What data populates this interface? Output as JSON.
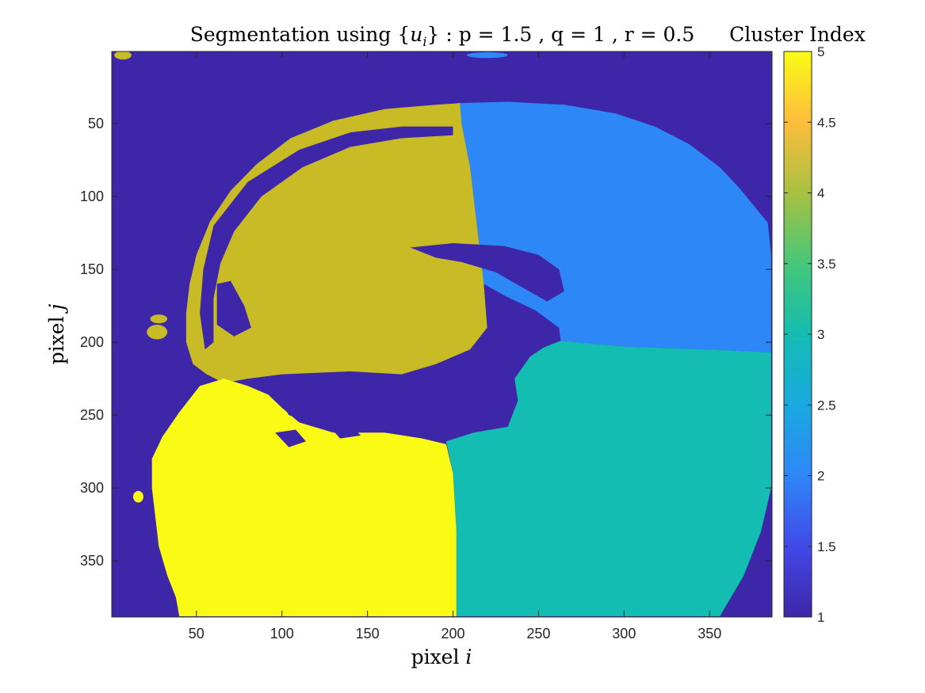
{
  "chart_data": {
    "type": "heatmap",
    "title_prefix": "Segmentation using {",
    "title_var": "u",
    "title_sub": "i",
    "title_suffix": "} : p = 1.5 , q = 1 , r = 0.5",
    "xlabel_text": "pixel ",
    "xlabel_var": "i",
    "ylabel_text": "pixel ",
    "ylabel_var": "j",
    "xlim": [
      0.5,
      386.5
    ],
    "ylim": [
      0.5,
      388.5
    ],
    "y_reversed": true,
    "xticks": [
      "50",
      "100",
      "150",
      "200",
      "250",
      "300",
      "350"
    ],
    "xtick_values": [
      50,
      100,
      150,
      200,
      250,
      300,
      350
    ],
    "yticks": [
      "50",
      "100",
      "150",
      "200",
      "250",
      "300",
      "350"
    ],
    "ytick_values": [
      50,
      100,
      150,
      200,
      250,
      300,
      350
    ],
    "colorbar": {
      "title": "Cluster Index",
      "range": [
        1,
        5
      ],
      "ticks": [
        "1",
        "1.5",
        "2",
        "2.5",
        "3",
        "3.5",
        "4",
        "4.5",
        "5"
      ],
      "tick_values": [
        1,
        1.5,
        2,
        2.5,
        3,
        3.5,
        4,
        4.5,
        5
      ]
    },
    "clusters": [
      {
        "index": 1,
        "color": "#3e26a8",
        "region": "background and dark structures"
      },
      {
        "index": 2,
        "color": "#2e87f7",
        "region": "upper right"
      },
      {
        "index": 3,
        "color": "#13bdb1",
        "region": "lower right"
      },
      {
        "index": 4,
        "color": "#c9bb26",
        "region": "upper left"
      },
      {
        "index": 5,
        "color": "#f9fb15",
        "region": "lower left"
      }
    ],
    "regions": [
      {
        "cluster": 2,
        "polygon": [
          [
            202,
            36
          ],
          [
            232,
            35
          ],
          [
            265,
            37
          ],
          [
            295,
            43
          ],
          [
            318,
            52
          ],
          [
            338,
            64
          ],
          [
            356,
            80
          ],
          [
            368,
            95
          ],
          [
            377,
            108
          ],
          [
            384,
            118
          ],
          [
            386,
            140
          ],
          [
            386,
            207
          ],
          [
            350,
            205
          ],
          [
            300,
            203
          ],
          [
            263,
            199
          ],
          [
            236,
            198
          ],
          [
            228,
            196
          ],
          [
            220,
            190
          ],
          [
            218,
            160
          ],
          [
            214,
            120
          ],
          [
            210,
            80
          ],
          [
            205,
            50
          ]
        ]
      },
      {
        "cluster": 3,
        "polygon": [
          [
            263,
            199
          ],
          [
            300,
            203
          ],
          [
            350,
            205
          ],
          [
            386,
            207
          ],
          [
            386,
            300
          ],
          [
            380,
            330
          ],
          [
            370,
            360
          ],
          [
            356,
            388
          ],
          [
            202,
            388
          ],
          [
            202,
            330
          ],
          [
            200,
            290
          ],
          [
            196,
            268
          ],
          [
            212,
            262
          ],
          [
            232,
            258
          ],
          [
            238,
            240
          ],
          [
            236,
            225
          ],
          [
            245,
            210
          ],
          [
            255,
            202
          ]
        ]
      },
      {
        "cluster": 4,
        "polygon": [
          [
            204,
            36
          ],
          [
            190,
            37
          ],
          [
            160,
            40
          ],
          [
            130,
            48
          ],
          [
            105,
            60
          ],
          [
            85,
            78
          ],
          [
            70,
            96
          ],
          [
            58,
            117
          ],
          [
            50,
            140
          ],
          [
            46,
            160
          ],
          [
            44,
            180
          ],
          [
            44,
            200
          ],
          [
            48,
            215
          ],
          [
            56,
            222
          ],
          [
            66,
            228
          ],
          [
            80,
            225
          ],
          [
            100,
            222
          ],
          [
            140,
            220
          ],
          [
            170,
            222
          ],
          [
            190,
            215
          ],
          [
            210,
            205
          ],
          [
            220,
            190
          ],
          [
            218,
            160
          ],
          [
            214,
            120
          ],
          [
            210,
            80
          ],
          [
            205,
            50
          ]
        ]
      },
      {
        "cluster": 5,
        "polygon": [
          [
            66,
            225
          ],
          [
            52,
            230
          ],
          [
            40,
            248
          ],
          [
            30,
            265
          ],
          [
            24,
            280
          ],
          [
            24,
            300
          ],
          [
            28,
            340
          ],
          [
            33,
            360
          ],
          [
            38,
            375
          ],
          [
            40,
            388
          ],
          [
            202,
            388
          ],
          [
            202,
            330
          ],
          [
            200,
            290
          ],
          [
            196,
            270
          ],
          [
            182,
            266
          ],
          [
            160,
            262
          ],
          [
            130,
            262
          ],
          [
            110,
            255
          ],
          [
            100,
            245
          ],
          [
            92,
            236
          ],
          [
            80,
            230
          ]
        ]
      }
    ],
    "holes": [
      {
        "polygon": [
          [
            60,
            120
          ],
          [
            80,
            90
          ],
          [
            110,
            68
          ],
          [
            140,
            56
          ],
          [
            170,
            52
          ],
          [
            200,
            52
          ],
          [
            200,
            58
          ],
          [
            170,
            60
          ],
          [
            140,
            66
          ],
          [
            112,
            80
          ],
          [
            88,
            100
          ],
          [
            72,
            124
          ],
          [
            64,
            146
          ],
          [
            60,
            170
          ],
          [
            60,
            200
          ],
          [
            55,
            205
          ],
          [
            52,
            180
          ],
          [
            54,
            150
          ]
        ]
      },
      {
        "polygon": [
          [
            62,
            160
          ],
          [
            70,
            158
          ],
          [
            78,
            175
          ],
          [
            82,
            190
          ],
          [
            72,
            196
          ],
          [
            62,
            188
          ]
        ]
      },
      {
        "polygon": [
          [
            175,
            135
          ],
          [
            200,
            132
          ],
          [
            230,
            134
          ],
          [
            250,
            140
          ],
          [
            262,
            150
          ],
          [
            265,
            165
          ],
          [
            255,
            172
          ],
          [
            240,
            162
          ],
          [
            225,
            152
          ],
          [
            205,
            145
          ],
          [
            190,
            142
          ]
        ]
      },
      {
        "polygon": [
          [
            218,
            160
          ],
          [
            230,
            168
          ],
          [
            248,
            178
          ],
          [
            262,
            190
          ],
          [
            263,
            199
          ],
          [
            250,
            205
          ],
          [
            236,
            215
          ],
          [
            236,
            232
          ],
          [
            220,
            236
          ],
          [
            200,
            232
          ],
          [
            186,
            226
          ],
          [
            175,
            230
          ],
          [
            160,
            226
          ],
          [
            140,
            222
          ],
          [
            110,
            222
          ],
          [
            100,
            224
          ],
          [
            96,
            235
          ],
          [
            104,
            250
          ],
          [
            120,
            256
          ],
          [
            150,
            258
          ],
          [
            175,
            262
          ],
          [
            196,
            268
          ],
          [
            210,
            262
          ],
          [
            226,
            256
          ],
          [
            232,
            244
          ],
          [
            228,
            230
          ],
          [
            210,
            205
          ],
          [
            220,
            190
          ]
        ]
      },
      {
        "polygon": [
          [
            96,
            262
          ],
          [
            108,
            260
          ],
          [
            114,
            268
          ],
          [
            104,
            272
          ]
        ]
      },
      {
        "polygon": [
          [
            128,
            258
          ],
          [
            140,
            256
          ],
          [
            146,
            264
          ],
          [
            134,
            266
          ]
        ]
      },
      {
        "polygon": [
          [
            104,
            240
          ],
          [
            118,
            238
          ],
          [
            124,
            246
          ],
          [
            110,
            250
          ]
        ]
      }
    ],
    "blobs": [
      {
        "cluster": 4,
        "center": [
          28,
          184
        ],
        "rx": 5,
        "ry": 3
      },
      {
        "cluster": 4,
        "center": [
          27,
          193
        ],
        "rx": 6,
        "ry": 5
      },
      {
        "cluster": 4,
        "center": [
          7,
          3
        ],
        "rx": 5,
        "ry": 3
      },
      {
        "cluster": 2,
        "center": [
          220,
          3
        ],
        "rx": 12,
        "ry": 2
      },
      {
        "cluster": 5,
        "center": [
          16,
          306
        ],
        "rx": 3,
        "ry": 4
      }
    ]
  }
}
